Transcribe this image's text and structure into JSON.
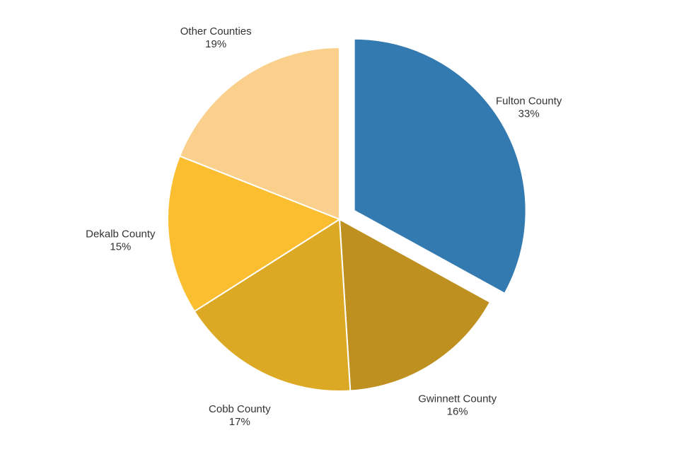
{
  "chart_data": {
    "type": "pie",
    "title": "",
    "slices": [
      {
        "label": "Fulton County",
        "value": 33,
        "value_label": "33%",
        "color": "#337ab0",
        "exploded": true
      },
      {
        "label": "Gwinnett County",
        "value": 16,
        "value_label": "16%",
        "color": "#be9020",
        "exploded": false
      },
      {
        "label": "Cobb County",
        "value": 17,
        "value_label": "17%",
        "color": "#dca925",
        "exploded": false
      },
      {
        "label": "Dekalb County",
        "value": 15,
        "value_label": "15%",
        "color": "#fbbe31",
        "exploded": false
      },
      {
        "label": "Other Counties",
        "value": 19,
        "value_label": "19%",
        "color": "#fad08c",
        "exploded": false
      }
    ],
    "start_angle_deg": 0,
    "direction": "clockwise",
    "legend": "none",
    "labels": "outside"
  }
}
